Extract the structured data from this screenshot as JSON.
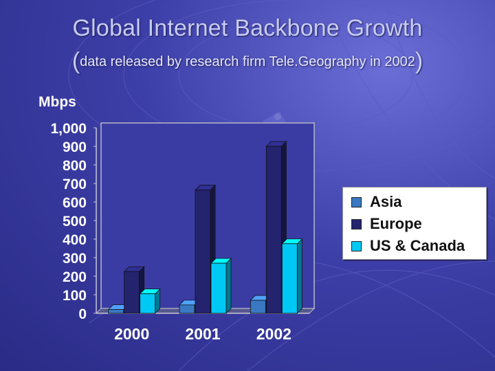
{
  "title": "Global Internet Backbone Growth",
  "subtitle": "data released by research firm Tele.Geography in 2002",
  "chart_data": {
    "type": "bar",
    "ylabel": "Mbps",
    "xlabel": "",
    "categories": [
      "2000",
      "2001",
      "2002"
    ],
    "ylim": [
      0,
      1000
    ],
    "yticks": [
      0,
      100,
      200,
      300,
      400,
      500,
      600,
      700,
      800,
      900,
      1000
    ],
    "ytick_labels": [
      "0",
      "100",
      "200",
      "300",
      "400",
      "500",
      "600",
      "700",
      "800",
      "900",
      "1,000"
    ],
    "series": [
      {
        "name": "Asia",
        "values": [
          20,
          45,
          70
        ],
        "color": "#3a78c2"
      },
      {
        "name": "Europe",
        "values": [
          225,
          665,
          900
        ],
        "color": "#23236e"
      },
      {
        "name": "US & Canada",
        "values": [
          105,
          270,
          375
        ],
        "color": "#00c8f5"
      }
    ],
    "grid": false,
    "legend_position": "right",
    "style": "3d"
  },
  "legend": {
    "items": [
      "Asia",
      "Europe",
      "US & Canada"
    ]
  },
  "colors": {
    "background": "#3d3fa8",
    "plot_bg": "#3a3ca4",
    "text": "#ffffff"
  }
}
